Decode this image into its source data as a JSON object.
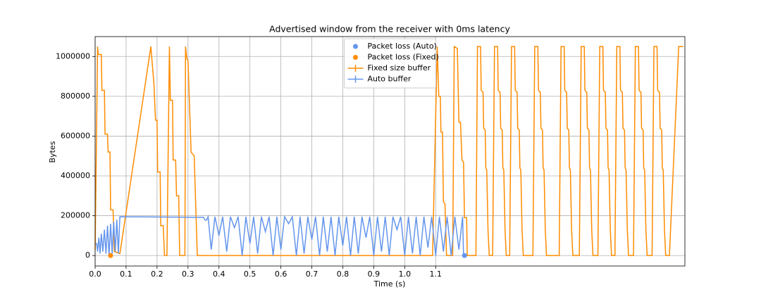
{
  "chart_data": {
    "type": "line",
    "title": "Advertised window from the receiver with 0ms latency",
    "xlabel": "Time (s)",
    "ylabel": "Bytes",
    "xlim": [
      0,
      1.905
    ],
    "ylim": [
      -52500,
      1100000
    ],
    "xticks": [
      {
        "value": 0,
        "label": "0.0"
      },
      0.1,
      0.2,
      0.3,
      0.4,
      0.5,
      0.6,
      0.7,
      0.8,
      0.9,
      {
        "value": 1,
        "label": "1.0"
      },
      1.1
    ],
    "yticks": [
      0,
      200000,
      400000,
      600000,
      800000,
      1000000
    ],
    "grid": true,
    "legend": "upper center",
    "points": [
      {
        "name": "Packet loss (Auto)",
        "color": "#6495ed",
        "x": [
          1.193
        ],
        "values": [
          0
        ]
      },
      {
        "name": "Packet loss (Fixed)",
        "color": "#ff8c00",
        "x": [
          0.05
        ],
        "values": [
          0
        ]
      }
    ],
    "series": [
      {
        "name": "Fixed size buffer",
        "color": "#ff8c00",
        "x": [
          0,
          0.008,
          0.01,
          0.02,
          0.022,
          0.03,
          0.032,
          0.04,
          0.042,
          0.048,
          0.05,
          0.058,
          0.062,
          0.08,
          0.18,
          0.19,
          0.195,
          0.2,
          0.202,
          0.21,
          0.212,
          0.22,
          0.224,
          0.232,
          0.24,
          0.243,
          0.25,
          0.252,
          0.26,
          0.263,
          0.27,
          0.273,
          0.29,
          0.292,
          0.296,
          0.3,
          0.31,
          0.32,
          0.33,
          1.09,
          1.105,
          1.11,
          1.115,
          1.117,
          1.122,
          1.125,
          1.13,
          1.135,
          1.155,
          1.16,
          1.17,
          1.175,
          1.18,
          1.185,
          1.19,
          1.193,
          1.2,
          1.202,
          1.23,
          1.235,
          1.245,
          1.247,
          1.253,
          1.255,
          1.26,
          1.262,
          1.265,
          1.269,
          1.273,
          1.284,
          1.29,
          1.3,
          1.302,
          1.308,
          1.31,
          1.315,
          1.317,
          1.32,
          1.324,
          1.328,
          1.339,
          1.345,
          1.355,
          1.357,
          1.363,
          1.365,
          1.37,
          1.372,
          1.375,
          1.379,
          1.383,
          1.414,
          1.42,
          1.43,
          1.432,
          1.438,
          1.44,
          1.445,
          1.447,
          1.45,
          1.454,
          1.458,
          1.499,
          1.505,
          1.515,
          1.517,
          1.523,
          1.525,
          1.53,
          1.532,
          1.535,
          1.539,
          1.543,
          1.564,
          1.57,
          1.58,
          1.582,
          1.588,
          1.59,
          1.595,
          1.597,
          1.6,
          1.604,
          1.608,
          1.624,
          1.63,
          1.64,
          1.642,
          1.648,
          1.65,
          1.655,
          1.657,
          1.66,
          1.664,
          1.668,
          1.679,
          1.685,
          1.695,
          1.697,
          1.703,
          1.705,
          1.71,
          1.712,
          1.715,
          1.719,
          1.723,
          1.739,
          1.745,
          1.755,
          1.757,
          1.763,
          1.765,
          1.77,
          1.772,
          1.775,
          1.779,
          1.783,
          1.799,
          1.805,
          1.815,
          1.817,
          1.823,
          1.825,
          1.83,
          1.832,
          1.835,
          1.839,
          1.843,
          1.855,
          1.885,
          1.9
        ],
        "values": [
          30000,
          1050000,
          1010000,
          1010000,
          830000,
          830000,
          610000,
          610000,
          520000,
          520000,
          230000,
          230000,
          20000,
          10000,
          1050000,
          860000,
          680000,
          680000,
          420000,
          420000,
          150000,
          150000,
          0,
          0,
          1050000,
          780000,
          780000,
          480000,
          480000,
          300000,
          300000,
          0,
          0,
          1050000,
          990000,
          980000,
          520000,
          500000,
          0,
          0,
          1050000,
          800000,
          800000,
          620000,
          620000,
          270000,
          260000,
          0,
          0,
          1050000,
          1040000,
          670000,
          670000,
          480000,
          470000,
          190000,
          190000,
          0,
          0,
          1050000,
          1050000,
          830000,
          820000,
          640000,
          630000,
          440000,
          430000,
          130000,
          0,
          0,
          1050000,
          1050000,
          830000,
          820000,
          640000,
          630000,
          440000,
          430000,
          130000,
          0,
          0,
          1050000,
          1050000,
          830000,
          820000,
          640000,
          630000,
          440000,
          430000,
          130000,
          0,
          0,
          1050000,
          1050000,
          830000,
          820000,
          640000,
          630000,
          440000,
          430000,
          130000,
          0,
          0,
          1050000,
          1050000,
          830000,
          820000,
          640000,
          630000,
          440000,
          430000,
          130000,
          0,
          0,
          1050000,
          1050000,
          830000,
          820000,
          640000,
          630000,
          440000,
          430000,
          130000,
          0,
          0,
          1050000,
          1050000,
          830000,
          820000,
          640000,
          630000,
          440000,
          430000,
          130000,
          0,
          0,
          1050000,
          1050000,
          830000,
          820000,
          640000,
          630000,
          440000,
          430000,
          130000,
          0,
          0,
          1050000,
          1050000,
          830000,
          820000,
          640000,
          630000,
          440000,
          430000,
          130000,
          0,
          0,
          1050000,
          1050000,
          830000,
          820000,
          640000,
          630000,
          440000,
          430000,
          130000,
          0,
          0,
          1050000,
          1050000
        ]
      },
      {
        "name": "Auto buffer",
        "color": "#6495ed",
        "x": [
          0,
          0.005,
          0.008,
          0.012,
          0.016,
          0.02,
          0.025,
          0.03,
          0.035,
          0.04,
          0.045,
          0.05,
          0.055,
          0.06,
          0.065,
          0.07,
          0.075,
          0.08,
          0.35,
          0.355,
          0.36,
          0.365,
          0.375,
          0.387,
          0.4,
          0.412,
          0.425,
          0.437,
          0.45,
          0.462,
          0.475,
          0.487,
          0.5,
          0.512,
          0.525,
          0.537,
          0.55,
          0.562,
          0.575,
          0.587,
          0.6,
          0.612,
          0.625,
          0.637,
          0.65,
          0.662,
          0.675,
          0.687,
          0.7,
          0.712,
          0.725,
          0.737,
          0.75,
          0.762,
          0.775,
          0.787,
          0.8,
          0.812,
          0.825,
          0.837,
          0.85,
          0.862,
          0.875,
          0.887,
          0.9,
          0.912,
          0.925,
          0.937,
          0.95,
          0.962,
          0.975,
          0.987,
          1.0,
          1.012,
          1.025,
          1.037,
          1.05,
          1.062,
          1.075,
          1.087,
          1.1,
          1.112,
          1.125,
          1.137,
          1.15,
          1.162,
          1.175,
          1.187,
          1.19
        ],
        "values": [
          60000,
          60000,
          20000,
          90000,
          10000,
          110000,
          20000,
          130000,
          10000,
          150000,
          0,
          160000,
          10000,
          170000,
          20000,
          180000,
          10000,
          195000,
          192000,
          178000,
          178000,
          195000,
          30000,
          195000,
          100000,
          195000,
          20000,
          195000,
          140000,
          195000,
          0,
          195000,
          60000,
          195000,
          10000,
          195000,
          120000,
          195000,
          0,
          195000,
          30000,
          195000,
          160000,
          195000,
          0,
          195000,
          10000,
          195000,
          80000,
          195000,
          0,
          195000,
          20000,
          195000,
          0,
          195000,
          50000,
          195000,
          0,
          195000,
          10000,
          195000,
          90000,
          195000,
          0,
          195000,
          20000,
          195000,
          0,
          195000,
          130000,
          195000,
          0,
          195000,
          10000,
          195000,
          0,
          195000,
          40000,
          195000,
          0,
          195000,
          20000,
          195000,
          0,
          195000,
          30000,
          195000,
          0
        ]
      }
    ]
  }
}
